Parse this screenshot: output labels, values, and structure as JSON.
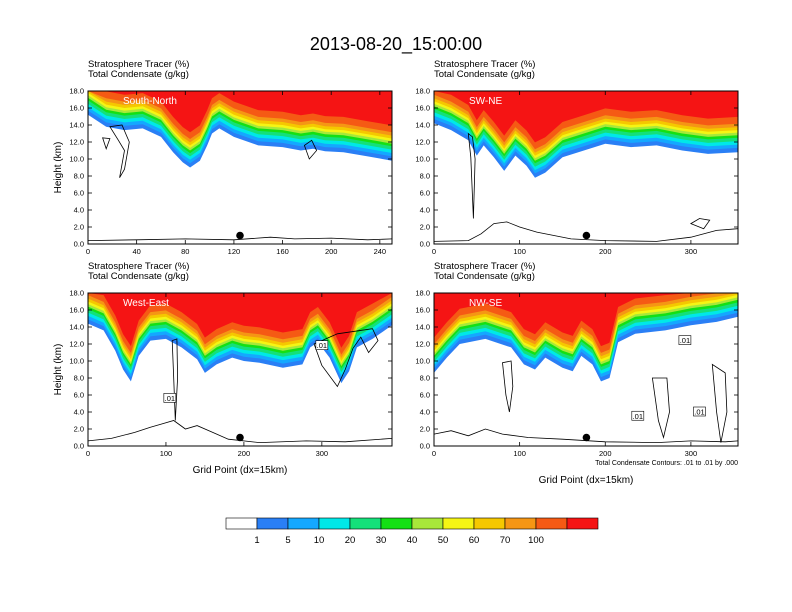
{
  "page": {
    "title": "2013-08-20_15:00:00",
    "footnote": "Total Condensate Contours: .01 to .01 by .000"
  },
  "colors": {
    "levels": [
      "#ffffff",
      "#2a7ff5",
      "#14a8ff",
      "#00e8e8",
      "#14e07a",
      "#14e014",
      "#a8e83a",
      "#f5f514",
      "#f5c800",
      "#f59614",
      "#f55a14",
      "#f51414"
    ]
  },
  "colorbar": {
    "labels": [
      "1",
      "5",
      "10",
      "20",
      "30",
      "40",
      "50",
      "60",
      "70",
      "100"
    ]
  },
  "chart_data": [
    {
      "type": "contour",
      "id": "p1",
      "subtitle1": "Stratosphere Tracer   (%)",
      "subtitle2": "Total Condensate   (g/kg)",
      "label": "South-North",
      "ylabel": "Height (km)",
      "xlabel": "",
      "xlim": [
        0,
        250
      ],
      "ylim": [
        0,
        18
      ],
      "xticks": [
        "0",
        "40",
        "80",
        "120",
        "160",
        "200",
        "240"
      ],
      "yticks": [
        "0.0",
        "2.0",
        "4.0",
        "6.0",
        "8.0",
        "10.0",
        "12.0",
        "14.0",
        "16.0",
        "18.0"
      ],
      "marker_x": 125,
      "tracer_base_km": [
        [
          0,
          15.2
        ],
        [
          15,
          13.8
        ],
        [
          30,
          13.4
        ],
        [
          45,
          13.6
        ],
        [
          60,
          12.6
        ],
        [
          70,
          10.8
        ],
        [
          78,
          9.6
        ],
        [
          84,
          9.0
        ],
        [
          92,
          9.8
        ],
        [
          98,
          11.6
        ],
        [
          102,
          13.0
        ],
        [
          108,
          13.6
        ],
        [
          120,
          12.6
        ],
        [
          140,
          11.6
        ],
        [
          160,
          11.4
        ],
        [
          175,
          11.0
        ],
        [
          185,
          11.2
        ],
        [
          195,
          10.9
        ],
        [
          210,
          10.8
        ],
        [
          230,
          10.3
        ],
        [
          250,
          9.8
        ]
      ],
      "condensate_contour_labels": []
    },
    {
      "type": "contour",
      "id": "p2",
      "subtitle1": "Stratosphere Tracer   (%)",
      "subtitle2": "Total Condensate   (g/kg)",
      "label": "SW-NE",
      "ylabel": "",
      "xlabel": "",
      "xlim": [
        0,
        355
      ],
      "ylim": [
        0,
        18
      ],
      "xticks": [
        "0",
        "100",
        "200",
        "300"
      ],
      "yticks": [
        "0.0",
        "2.0",
        "4.0",
        "6.0",
        "8.0",
        "10.0",
        "12.0",
        "14.0",
        "16.0",
        "18.0"
      ],
      "marker_x": 178,
      "tracer_base_km": [
        [
          0,
          14.2
        ],
        [
          20,
          13.4
        ],
        [
          40,
          12.2
        ],
        [
          50,
          10.4
        ],
        [
          58,
          11.6
        ],
        [
          70,
          10.2
        ],
        [
          82,
          8.6
        ],
        [
          95,
          10.4
        ],
        [
          108,
          9.2
        ],
        [
          118,
          7.8
        ],
        [
          130,
          8.4
        ],
        [
          150,
          10.2
        ],
        [
          175,
          11.0
        ],
        [
          200,
          11.8
        ],
        [
          230,
          11.4
        ],
        [
          260,
          11.6
        ],
        [
          290,
          11.0
        ],
        [
          320,
          10.6
        ],
        [
          355,
          10.8
        ]
      ],
      "condensate_contour_labels": []
    },
    {
      "type": "contour",
      "id": "p3",
      "subtitle1": "Stratosphere Tracer   (%)",
      "subtitle2": "Total Condensate   (g/kg)",
      "label": "West-East",
      "ylabel": "Height (km)",
      "xlabel": "Grid Point (dx=15km)",
      "xlim": [
        0,
        390
      ],
      "ylim": [
        0,
        18
      ],
      "xticks": [
        "0",
        "100",
        "200",
        "300"
      ],
      "yticks": [
        "0.0",
        "2.0",
        "4.0",
        "6.0",
        "8.0",
        "10.0",
        "12.0",
        "14.0",
        "16.0",
        "18.0"
      ],
      "marker_x": 195,
      "tracer_base_km": [
        [
          0,
          14.4
        ],
        [
          20,
          13.6
        ],
        [
          35,
          11.2
        ],
        [
          45,
          9.0
        ],
        [
          55,
          7.6
        ],
        [
          65,
          10.6
        ],
        [
          80,
          12.4
        ],
        [
          100,
          12.6
        ],
        [
          120,
          11.6
        ],
        [
          140,
          10.2
        ],
        [
          150,
          8.6
        ],
        [
          165,
          9.6
        ],
        [
          185,
          10.4
        ],
        [
          200,
          10.0
        ],
        [
          220,
          9.8
        ],
        [
          250,
          9.2
        ],
        [
          275,
          9.6
        ],
        [
          285,
          11.6
        ],
        [
          295,
          12.2
        ],
        [
          310,
          10.4
        ],
        [
          325,
          7.4
        ],
        [
          335,
          8.8
        ],
        [
          345,
          11.6
        ],
        [
          365,
          12.6
        ],
        [
          390,
          14.2
        ]
      ],
      "condensate_contour_labels": [
        ".01",
        ".01"
      ]
    },
    {
      "type": "contour",
      "id": "p4",
      "subtitle1": "Stratosphere Tracer   (%)",
      "subtitle2": "Total Condensate   (g/kg)",
      "label": "NW-SE",
      "ylabel": "",
      "xlabel": "Grid Point (dx=15km)",
      "xlim": [
        0,
        355
      ],
      "ylim": [
        0,
        18
      ],
      "xticks": [
        "0",
        "100",
        "200",
        "300"
      ],
      "yticks": [
        "0.0",
        "2.0",
        "4.0",
        "6.0",
        "8.0",
        "10.0",
        "12.0",
        "14.0",
        "16.0",
        "18.0"
      ],
      "marker_x": 178,
      "tracer_base_km": [
        [
          0,
          8.6
        ],
        [
          15,
          10.4
        ],
        [
          30,
          12.0
        ],
        [
          60,
          12.6
        ],
        [
          90,
          11.6
        ],
        [
          105,
          9.6
        ],
        [
          118,
          9.0
        ],
        [
          130,
          10.4
        ],
        [
          150,
          9.2
        ],
        [
          162,
          8.8
        ],
        [
          172,
          10.6
        ],
        [
          185,
          9.6
        ],
        [
          195,
          7.6
        ],
        [
          205,
          8.0
        ],
        [
          215,
          12.2
        ],
        [
          235,
          13.2
        ],
        [
          270,
          13.6
        ],
        [
          300,
          14.2
        ],
        [
          330,
          14.6
        ],
        [
          355,
          15.2
        ]
      ],
      "condensate_contour_labels": [
        ".01",
        ".01",
        ".01"
      ]
    }
  ]
}
